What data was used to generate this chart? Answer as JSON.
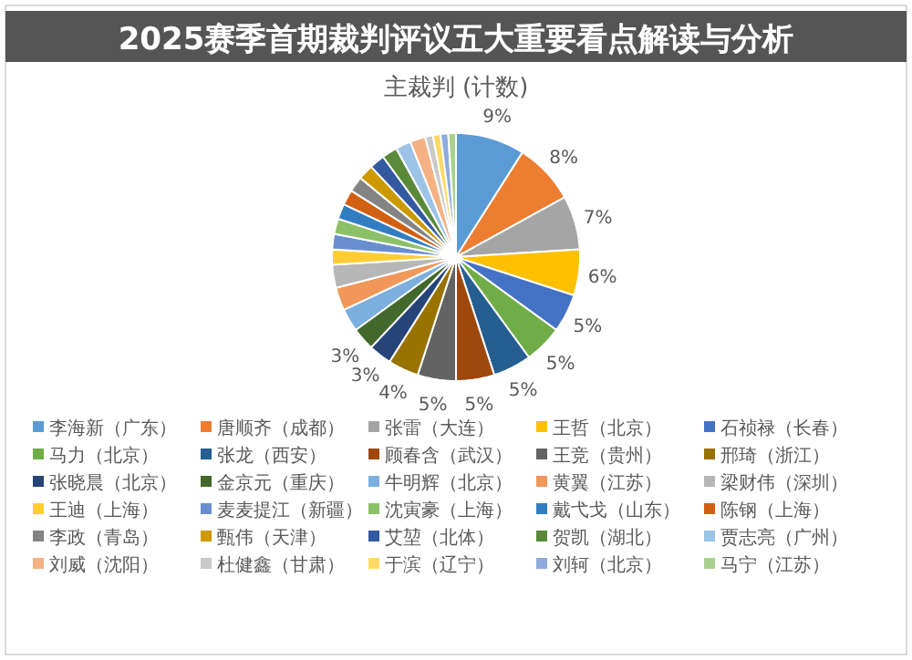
{
  "chart_data": {
    "type": "pie",
    "title": "主裁判 (计数)",
    "annotations": [
      "2025赛季首期裁判评议五大重要看点解读与分析"
    ],
    "categories": [
      "李海新（广东）",
      "唐顺齐（成都）",
      "张雷（大连）",
      "王哲（北京）",
      "石祯禄（长春）",
      "马力（北京）",
      "张龙（西安）",
      "顾春含（武汉）",
      "王竞（贵州）",
      "邢琦（浙江）",
      "张晓晨（北京）",
      "金京元（重庆）",
      "牛明辉（北京）",
      "黄翼（江苏）",
      "梁财伟（深圳）",
      "王迪（上海）",
      "麦麦提江（新疆）",
      "沈寅豪（上海）",
      "戴弋戈（山东）",
      "陈钢（上海）",
      "李政（青岛）",
      "甄伟（天津）",
      "艾堃（北体）",
      "贺凯（湖北）",
      "贾志亮（广州）",
      "刘威（沈阳）",
      "杜健鑫（甘肃）",
      "于滨（辽宁）",
      "刘轲（北京）",
      "马宁（江苏）"
    ],
    "values": [
      9,
      8,
      7,
      6,
      5,
      5,
      5,
      5,
      5,
      4,
      3,
      3,
      3,
      3,
      3,
      2,
      2,
      2,
      2,
      2,
      2,
      2,
      2,
      2,
      2,
      2,
      1,
      1,
      1,
      1
    ],
    "value_labels": [
      "9%",
      "8%",
      "7%",
      "6%",
      "5%",
      "5%",
      "5%",
      "5%",
      "5%",
      "4%",
      "3%",
      "3%",
      null,
      null,
      null,
      null,
      null,
      null,
      null,
      null,
      null,
      null,
      null,
      null,
      null,
      null,
      null,
      null,
      null,
      null
    ],
    "colors": [
      "#5b9bd5",
      "#ed7d31",
      "#a5a5a5",
      "#ffc000",
      "#4472c4",
      "#70ad47",
      "#255e91",
      "#9e480e",
      "#636363",
      "#997300",
      "#264478",
      "#43682b",
      "#7cafdd",
      "#f1975a",
      "#b7b7b7",
      "#ffcd33",
      "#698ed0",
      "#8cc168",
      "#327dc2",
      "#d26012",
      "#848484",
      "#cc9a00",
      "#335aa1",
      "#5a8a39",
      "#9dc3e6",
      "#f4b183",
      "#c9c9c9",
      "#ffd966",
      "#8faadc",
      "#a9d18e"
    ],
    "legend": "bottom"
  }
}
